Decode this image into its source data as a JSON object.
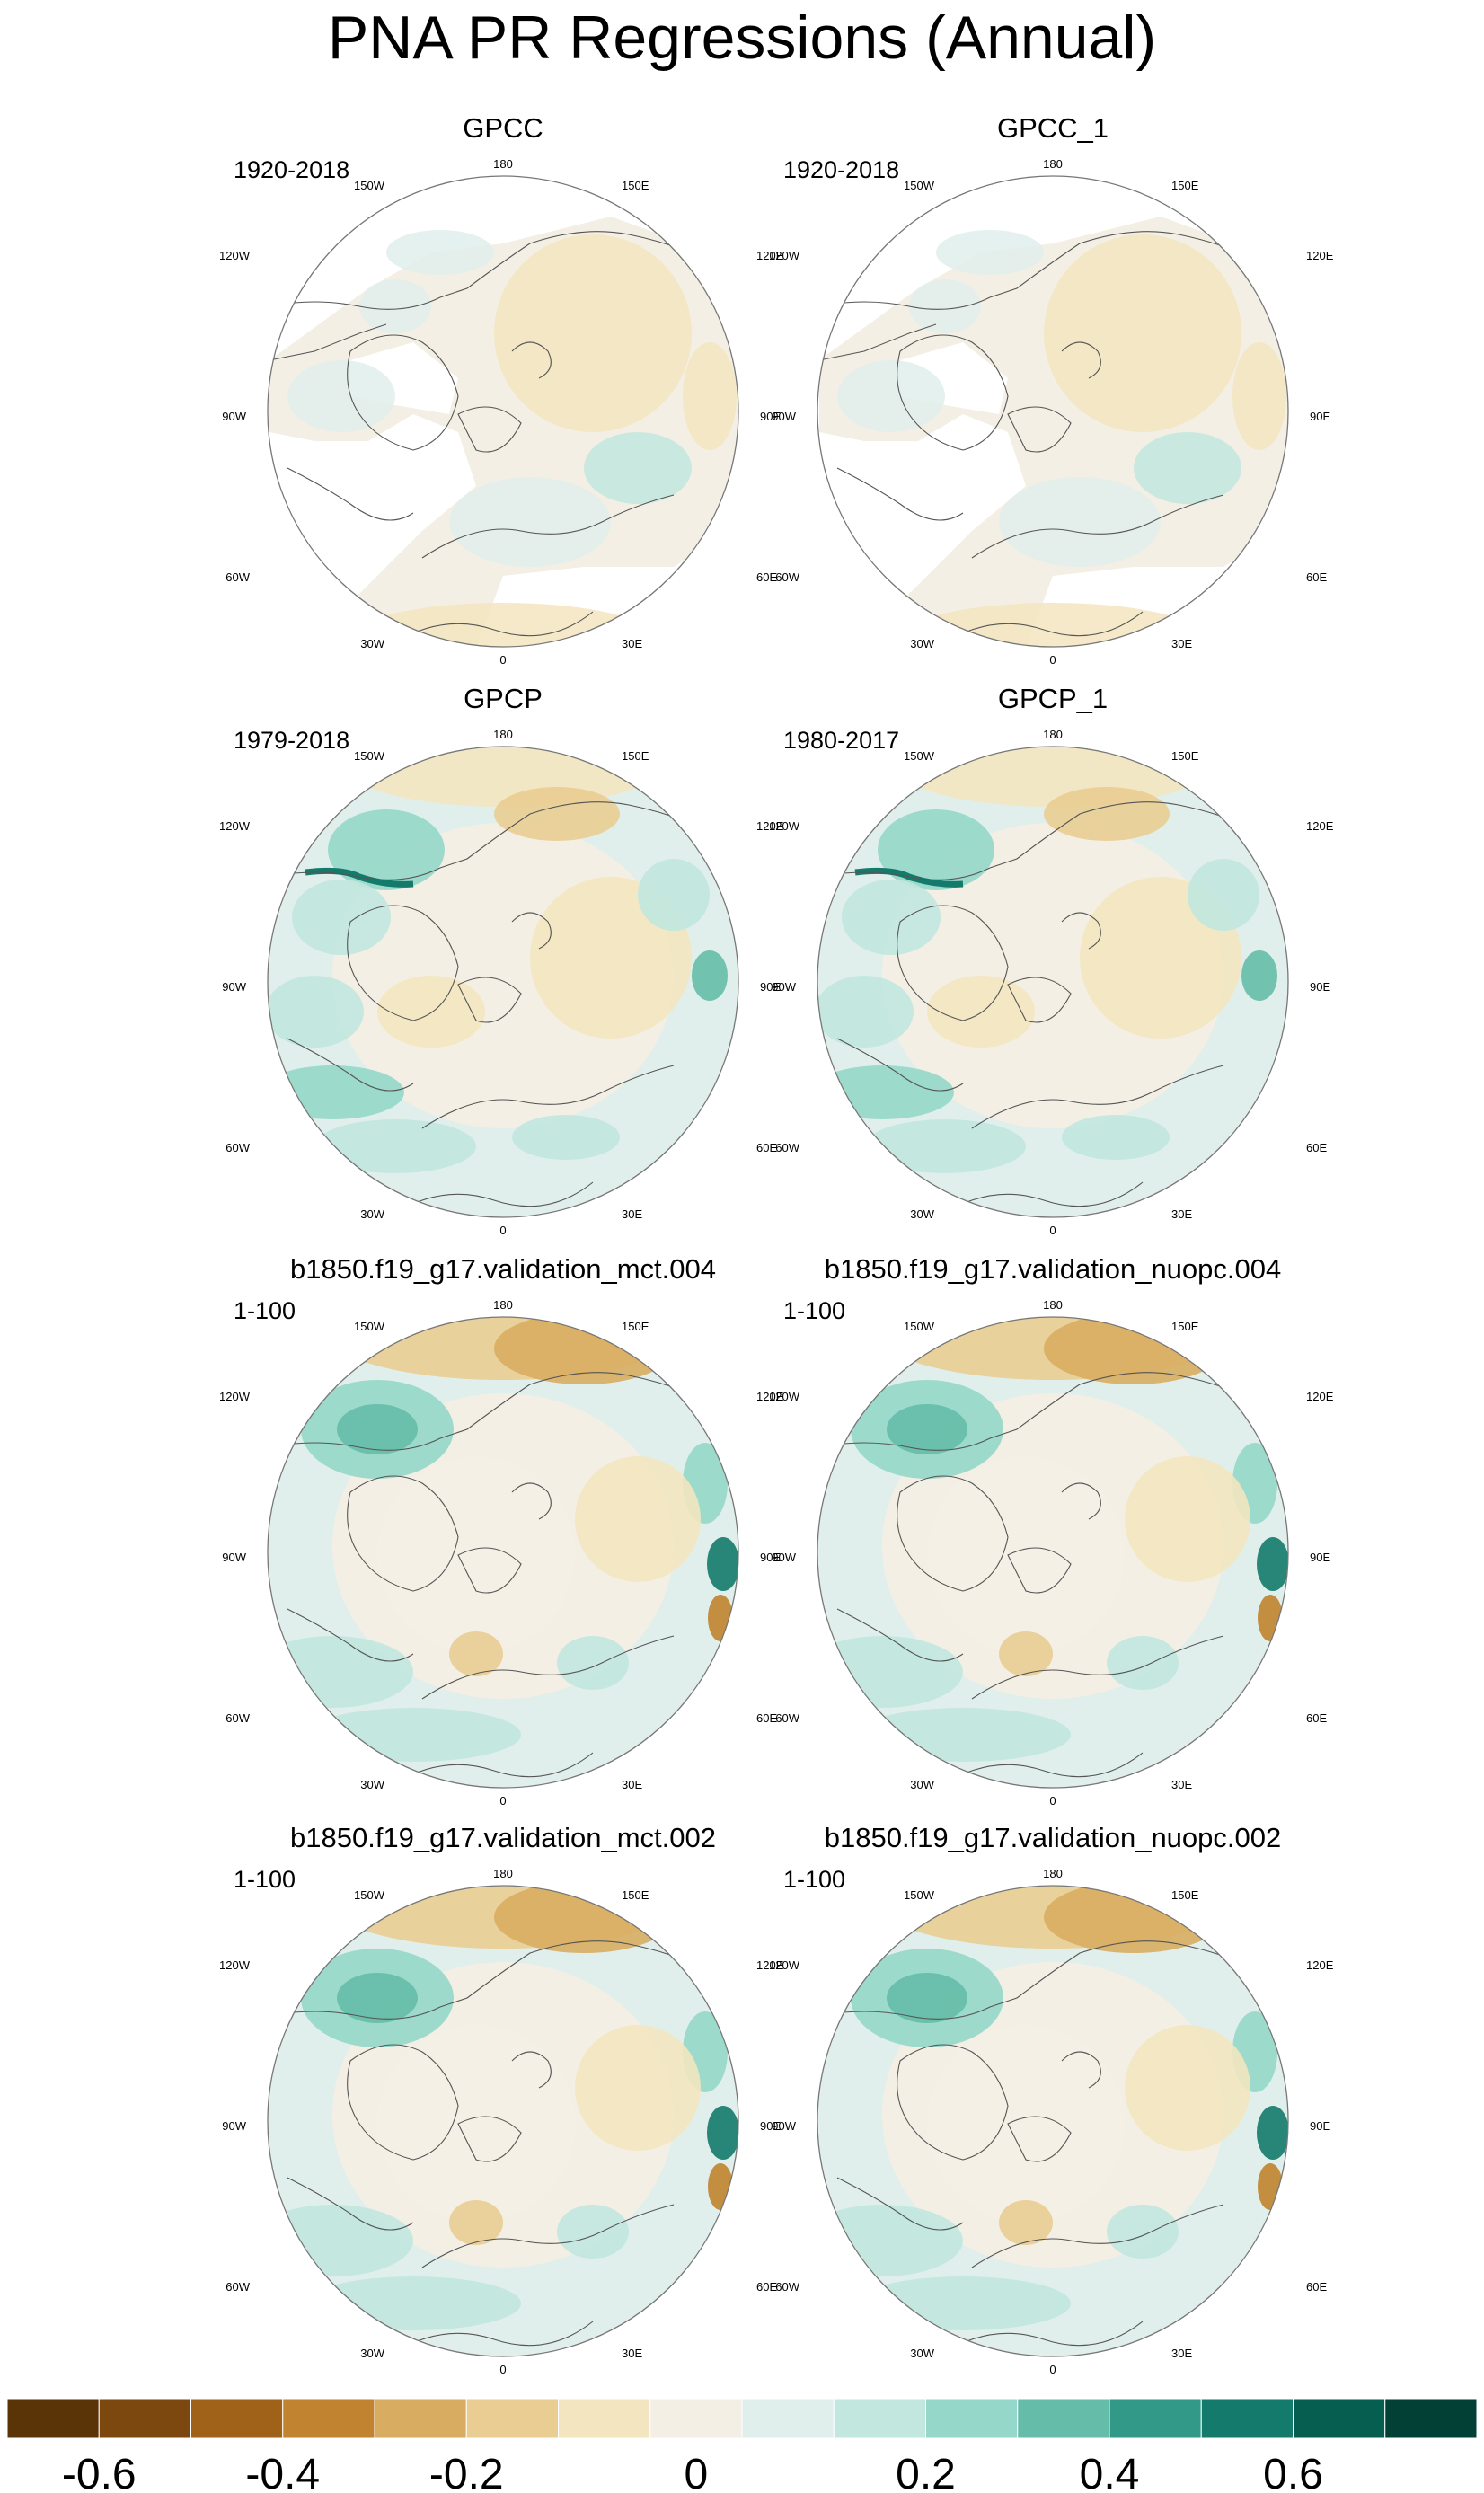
{
  "figure": {
    "title": "PNA PR Regressions (Annual)"
  },
  "panels": [
    {
      "title": "GPCC",
      "period": "1920-2018",
      "kind": "station_land_only"
    },
    {
      "title": "GPCC_1",
      "period": "1920-2018",
      "kind": "station_land_only"
    },
    {
      "title": "GPCP",
      "period": "1979-2018",
      "kind": "satellite_global"
    },
    {
      "title": "GPCP_1",
      "period": "1980-2017",
      "kind": "satellite_global"
    },
    {
      "title": "b1850.f19_g17.validation_mct.004",
      "period": "1-100",
      "kind": "model"
    },
    {
      "title": "b1850.f19_g17.validation_nuopc.004",
      "period": "1-100",
      "kind": "model"
    },
    {
      "title": "b1850.f19_g17.validation_mct.002",
      "period": "1-100",
      "kind": "model"
    },
    {
      "title": "b1850.f19_g17.validation_nuopc.002",
      "period": "1-100",
      "kind": "model"
    }
  ],
  "longitude_labels": {
    "top": "180",
    "bottom": "0",
    "left": [
      "150W",
      "120W",
      "90W",
      "60W",
      "30W"
    ],
    "right": [
      "150E",
      "120E",
      "90E",
      "60E",
      "30E"
    ]
  },
  "colorbar": {
    "colors": [
      "#5a3407",
      "#7d480f",
      "#a06218",
      "#c1832f",
      "#d8ad62",
      "#e9cd92",
      "#f3e5c0",
      "#f4efe4",
      "#e1efec",
      "#c1e7df",
      "#95d7c9",
      "#65bca9",
      "#329988",
      "#137a6c",
      "#065e50",
      "#023f35"
    ],
    "tick_labels": [
      "-0.6",
      "-0.4",
      "-0.2",
      "0",
      "0.2",
      "0.4",
      "0.6"
    ],
    "tick_positions": [
      1,
      3,
      5,
      7.5,
      10,
      12,
      14
    ]
  }
}
